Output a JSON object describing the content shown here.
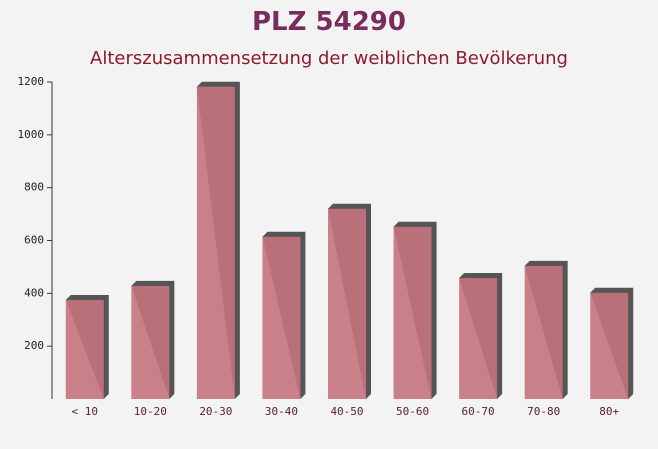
{
  "chart_data": {
    "type": "bar",
    "title": "PLZ 54290",
    "subtitle": "Alterszusammensetzung der weiblichen Bevölkerung",
    "categories": [
      "< 10",
      "10-20",
      "20-30",
      "30-40",
      "40-50",
      "50-60",
      "60-70",
      "70-80",
      "80+"
    ],
    "values": [
      375,
      428,
      1182,
      614,
      720,
      652,
      458,
      504,
      402
    ],
    "color": "#c4737c",
    "ylim": [
      0,
      1200
    ],
    "yticks": [
      200,
      400,
      600,
      800,
      1000,
      1200
    ],
    "grid": false
  }
}
